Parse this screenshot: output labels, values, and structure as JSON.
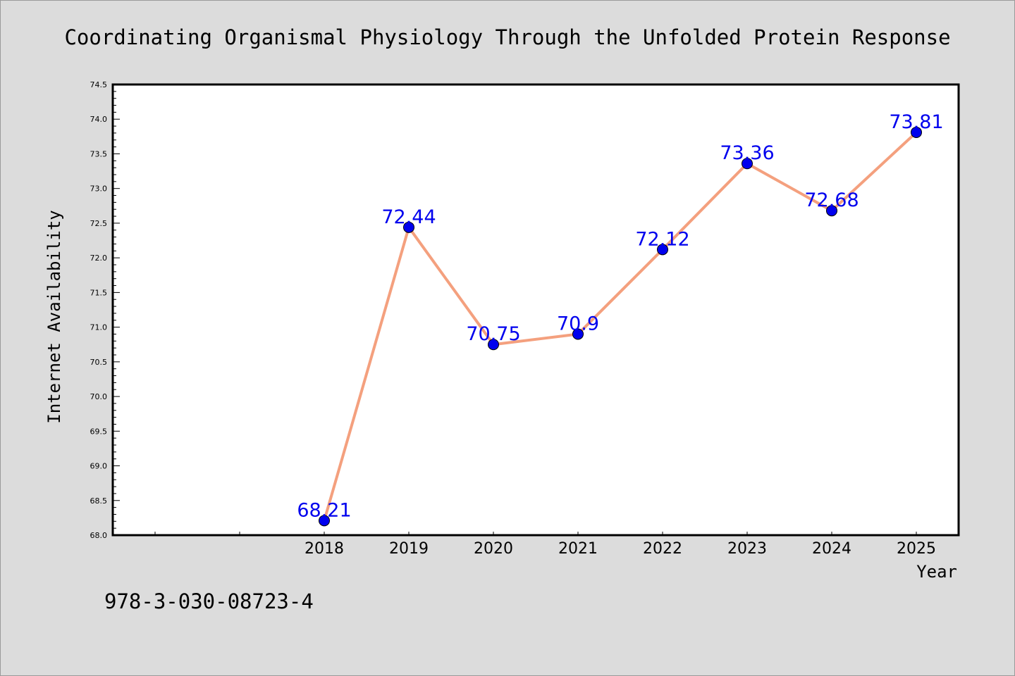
{
  "chart_data": {
    "type": "line",
    "title": "Coordinating Organismal Physiology Through the Unfolded Protein Response",
    "xlabel": "Year",
    "ylabel": "Internet Availability",
    "x_ticks": [
      "",
      "",
      "2018",
      "2019",
      "2020",
      "2021",
      "2022",
      "2023",
      "2024",
      "2025"
    ],
    "series": [
      {
        "x": [
          "2018",
          "2019",
          "2020",
          "2021",
          "2022",
          "2023",
          "2024",
          "2025"
        ],
        "values": [
          68.21,
          72.44,
          70.75,
          70.9,
          72.12,
          73.36,
          72.68,
          73.81
        ],
        "labels": [
          "68.21",
          "72.44",
          "70.75",
          "70.9",
          "72.12",
          "73.36",
          "72.68",
          "73.81"
        ]
      }
    ],
    "ylim": [
      68.0,
      74.5
    ],
    "y_ticks": [
      "68.0",
      "68.5",
      "69.0",
      "69.5",
      "70.0",
      "70.5",
      "71.0",
      "71.5",
      "72.0",
      "72.5",
      "73.0",
      "73.5",
      "74.0",
      "74.5"
    ],
    "grid": false,
    "legend": "none",
    "line_color": "#f4a07e",
    "marker_color": "#0000ee",
    "label_color": "#0000ee"
  },
  "footer_text": "978-3-030-08723-4"
}
